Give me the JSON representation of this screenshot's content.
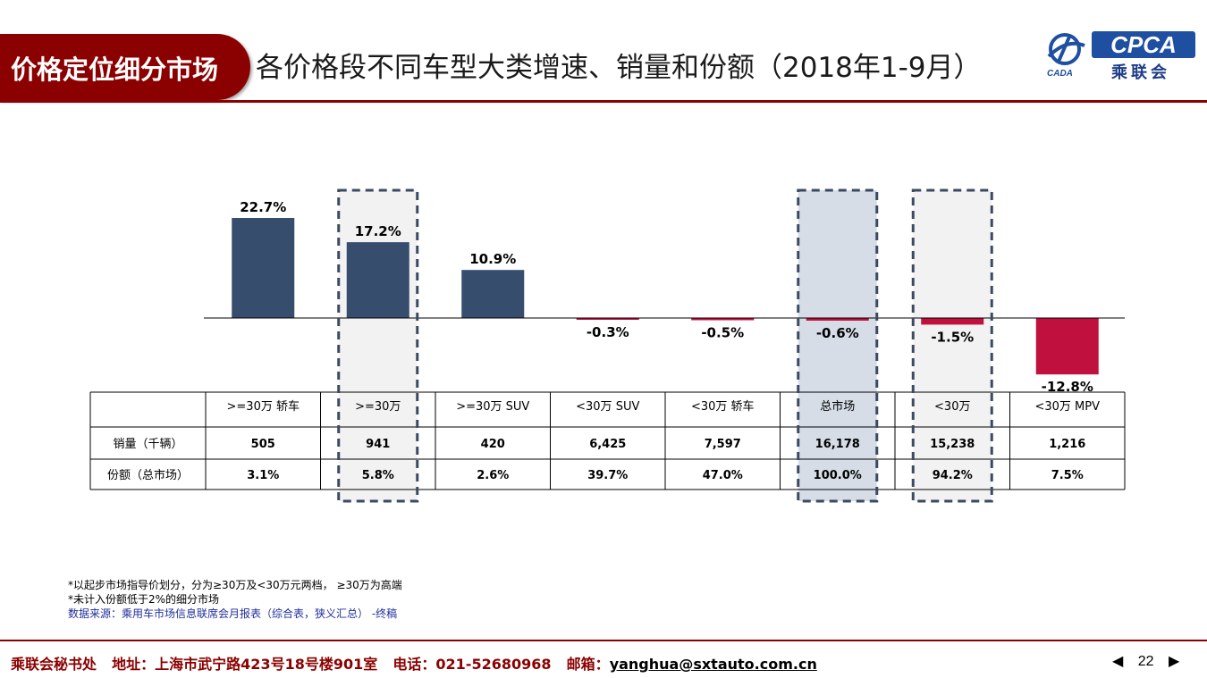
{
  "header": {
    "section_tag": "价格定位细分市场",
    "title": "各价格段不同车型大类增速、销量和份额（2018年1-9月）",
    "logo": {
      "main": "CPCA",
      "cn": "乘联会",
      "sub": "CADA"
    }
  },
  "colors": {
    "positive": "#364d6e",
    "negative": "#c0103e",
    "brand": "#8b0000",
    "highlight_blue": "#d6dde7",
    "highlight_gray": "#f2f2f2"
  },
  "chart_data": {
    "type": "bar",
    "categories": [
      ">=30万 轿车",
      ">=30万",
      ">=30万 SUV",
      "<30万 SUV",
      "<30万 轿车",
      "总市场",
      "<30万",
      "<30万 MPV"
    ],
    "values": [
      22.7,
      17.2,
      10.9,
      -0.3,
      -0.5,
      -0.6,
      -1.5,
      -12.8
    ],
    "value_labels": [
      "22.7%",
      "17.2%",
      "10.9%",
      "-0.3%",
      "-0.5%",
      "-0.6%",
      "-1.5%",
      "-12.8%"
    ],
    "highlighted": [
      1,
      5,
      6
    ],
    "title": "",
    "xlabel": "",
    "ylabel": "",
    "ylim": [
      -15,
      25
    ]
  },
  "table": {
    "headers": [
      "",
      ">=30万 轿车",
      ">=30万",
      ">=30万 SUV",
      "<30万 SUV",
      "<30万 轿车",
      "总市场",
      "<30万",
      "<30万 MPV"
    ],
    "rows": [
      {
        "label": "销量（千辆）",
        "values": [
          "505",
          "941",
          "420",
          "6,425",
          "7,597",
          "16,178",
          "15,238",
          "1,216"
        ]
      },
      {
        "label": "份额（总市场）",
        "values": [
          "3.1%",
          "5.8%",
          "2.6%",
          "39.7%",
          "47.0%",
          "100.0%",
          "94.2%",
          "7.5%"
        ]
      }
    ]
  },
  "notes": {
    "line1": "*以起步市场指导价划分，分为≥30万及<30万元两档， ≥30万为高端",
    "line2": "*未计入份额低于2%的细分市场",
    "source": "数据来源：乘用车市场信息联席会月报表（综合表，狭义汇总） -终稿"
  },
  "footer": {
    "org": "乘联会秘书处",
    "address": "地址：上海市武宁路423号18号楼901室",
    "phone": "电话：021-52680968",
    "email_label": "邮箱：",
    "email": "yanghua@sxtauto.com.cn",
    "page": "22",
    "prev": "◀",
    "next": "▶"
  }
}
